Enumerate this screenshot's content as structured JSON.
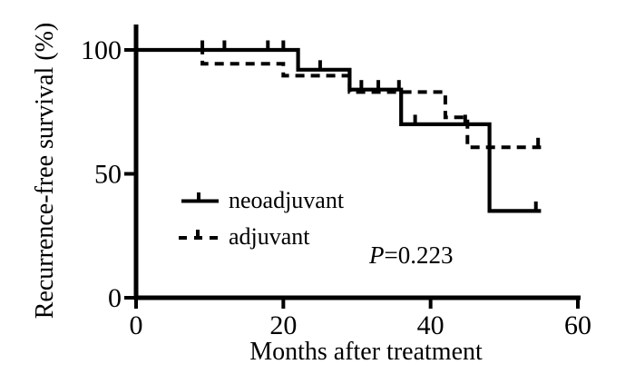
{
  "figure": {
    "background": "#ffffff",
    "line_color": "#000000"
  },
  "chart_data": {
    "type": "line",
    "subtype": "kaplan-meier-step",
    "title": "",
    "xlabel": "Months after treatment",
    "ylabel": "Recurrence-free survival (%)",
    "xlim": [
      0,
      60
    ],
    "ylim": [
      0,
      100
    ],
    "x_ticks": [
      0,
      20,
      40,
      60
    ],
    "y_ticks": [
      0,
      50,
      100
    ],
    "grid": false,
    "legend_position": "inside lower-left",
    "annotation": {
      "symbol": "P",
      "text": "=0.223"
    },
    "series": [
      {
        "name": "neoadjuvant",
        "line_style": "solid",
        "steps": [
          [
            0,
            100
          ],
          [
            22,
            100
          ],
          [
            22,
            92
          ],
          [
            29,
            92
          ],
          [
            29,
            84
          ],
          [
            36,
            84
          ],
          [
            36,
            70
          ],
          [
            48,
            70
          ],
          [
            48,
            35
          ],
          [
            55,
            35
          ]
        ],
        "censor_marks": [
          [
            9,
            100
          ],
          [
            12,
            100
          ],
          [
            17.9,
            100
          ],
          [
            20,
            100
          ],
          [
            25,
            92
          ],
          [
            30.6,
            84
          ],
          [
            32.9,
            84
          ],
          [
            35.7,
            84
          ],
          [
            37.9,
            70
          ],
          [
            44.7,
            70
          ],
          [
            54.3,
            35
          ]
        ]
      },
      {
        "name": "adjuvant",
        "line_style": "dashed",
        "steps": [
          [
            0,
            100
          ],
          [
            9,
            100
          ],
          [
            9,
            94.4
          ],
          [
            20,
            94.4
          ],
          [
            20,
            89.6
          ],
          [
            29,
            89.6
          ],
          [
            29,
            83
          ],
          [
            42,
            83
          ],
          [
            42,
            72.8
          ],
          [
            45,
            72.8
          ],
          [
            45,
            60.7
          ],
          [
            55,
            60.7
          ]
        ],
        "censor_marks": [
          [
            54.6,
            60.7
          ]
        ]
      }
    ]
  }
}
